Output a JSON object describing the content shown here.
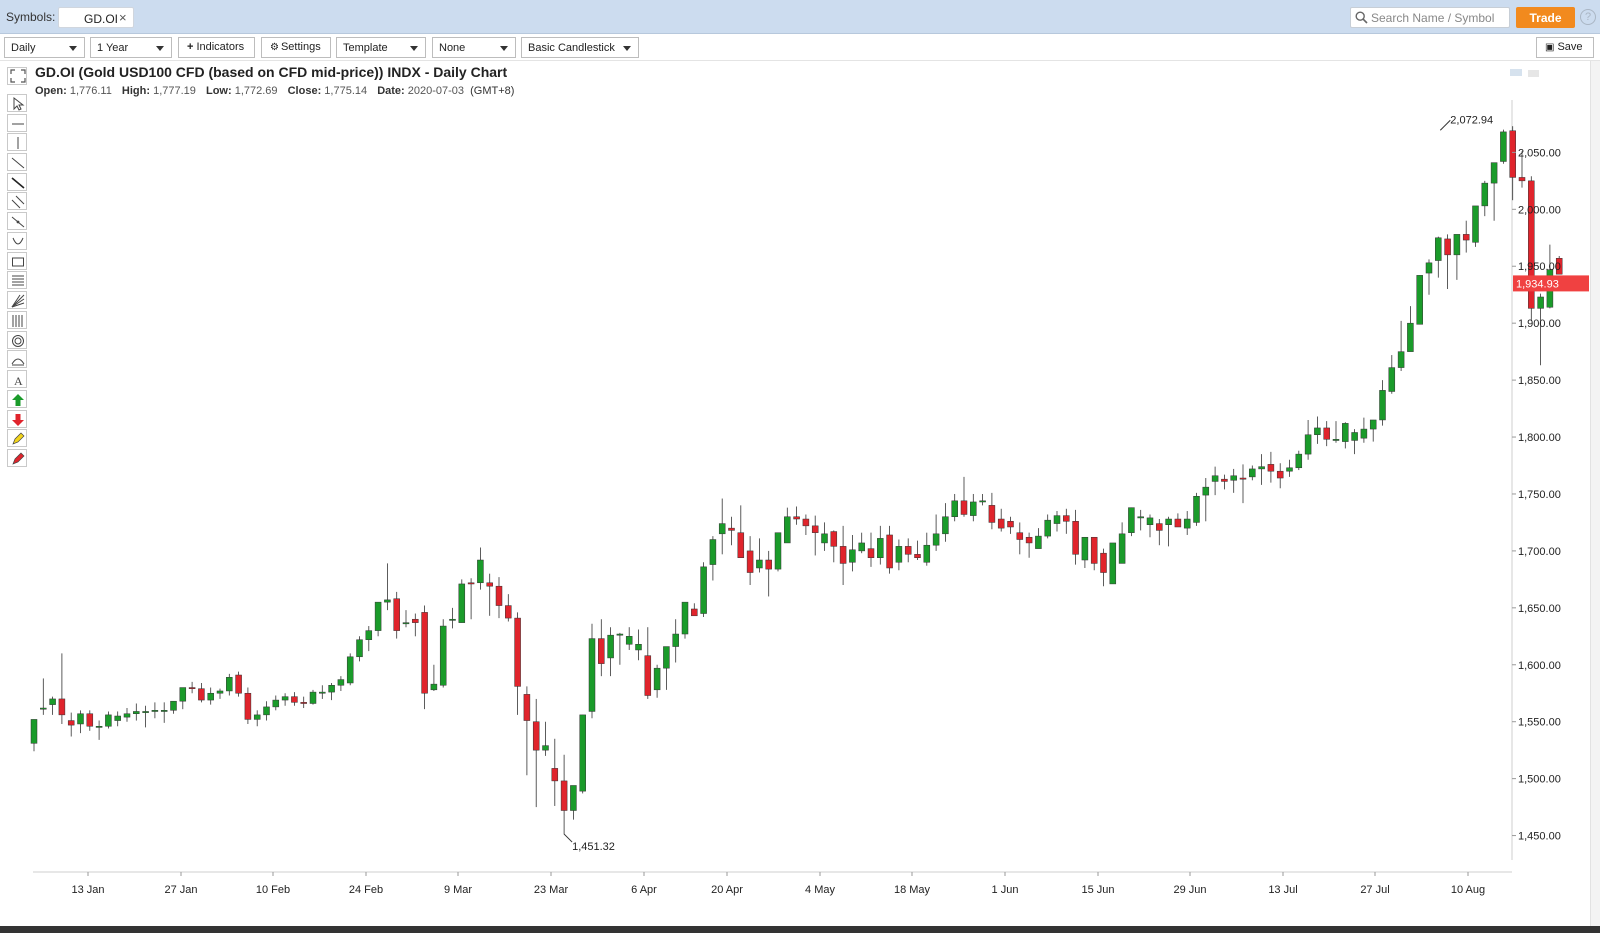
{
  "symbols_bar": {
    "label": "Symbols:",
    "symbol_chip": "GD.OI",
    "close_glyph": "×",
    "search_placeholder": "Search Name / Symbol",
    "trade_label": "Trade",
    "help_glyph": "?"
  },
  "toolbar": {
    "interval": "Daily",
    "range": "1 Year",
    "indicators_label": "Indicators",
    "settings_label": "Settings",
    "template_label": "Template",
    "compare_label": "None",
    "chart_type": "Basic Candlestick",
    "save_label": "Save"
  },
  "chart_header": {
    "title": "GD.OI (Gold USD100 CFD (based on CFD mid-price)) INDX - Daily Chart",
    "open_label": "Open:",
    "open": "1,776.11",
    "high_label": "High:",
    "high": "1,777.19",
    "low_label": "Low:",
    "low": "1,772.69",
    "close_label": "Close:",
    "close": "1,775.14",
    "date_label": "Date:",
    "date": "2020-07-03",
    "tz": "(GMT+8)"
  },
  "tools": [
    "select-icon",
    "horizontal-line-icon",
    "vertical-line-icon",
    "trend-line-icon",
    "ray-icon",
    "parallel-channel-icon",
    "extended-line-icon",
    "arc-icon",
    "rectangle-icon",
    "fibonacci-retracement-icon",
    "fan-icon",
    "time-zones-icon",
    "circle-icon",
    "pitchfork-icon",
    "text-icon",
    "arrow-up-icon",
    "arrow-down-icon",
    "pencil-icon",
    "eraser-icon"
  ],
  "colors": {
    "up": "#1a9b2a",
    "down": "#e0242c",
    "last_price_bg": "#f04141",
    "accent": "#f28a1e"
  },
  "chart_data": {
    "type": "candlestick",
    "x_tick_labels": [
      "13 Jan",
      "27 Jan",
      "10 Feb",
      "24 Feb",
      "9 Mar",
      "23 Mar",
      "6 Apr",
      "20 Apr",
      "4 May",
      "18 May",
      "1 Jun",
      "15 Jun",
      "29 Jun",
      "13 Jul",
      "27 Jul",
      "10 Aug"
    ],
    "y_tick_labels": [
      "2,050.00",
      "2,000.00",
      "1,950.00",
      "1,900.00",
      "1,850.00",
      "1,800.00",
      "1,750.00",
      "1,700.00",
      "1,650.00",
      "1,600.00",
      "1,550.00",
      "1,500.00",
      "1,450.00"
    ],
    "y_ticks": [
      2050,
      2000,
      1950,
      1900,
      1850,
      1800,
      1750,
      1700,
      1650,
      1600,
      1550,
      1500,
      1450
    ],
    "ylim": [
      1418,
      2096
    ],
    "annotations": {
      "high_label": "2,072.94",
      "high_value": 2072.94,
      "low_label": "1,451.32",
      "low_value": 1451.32
    },
    "last_price": "1,934.93",
    "last_price_value": 1934.93,
    "candles_ohlc": [
      [
        1531,
        1552,
        1524,
        1552
      ],
      [
        1562,
        1588,
        1556,
        1562
      ],
      [
        1565,
        1572,
        1556,
        1570
      ],
      [
        1570,
        1610,
        1548,
        1556
      ],
      [
        1551,
        1558,
        1537,
        1547
      ],
      [
        1548,
        1560,
        1540,
        1557
      ],
      [
        1557,
        1560,
        1542,
        1546
      ],
      [
        1546,
        1551,
        1534,
        1546
      ],
      [
        1546,
        1559,
        1544,
        1556
      ],
      [
        1551,
        1559,
        1546,
        1555
      ],
      [
        1554,
        1562,
        1550,
        1557
      ],
      [
        1557,
        1566,
        1551,
        1559
      ],
      [
        1558,
        1564,
        1545,
        1559
      ],
      [
        1559,
        1567,
        1553,
        1560
      ],
      [
        1560,
        1567,
        1549,
        1560
      ],
      [
        1560,
        1568,
        1557,
        1568
      ],
      [
        1568,
        1577,
        1561,
        1580
      ],
      [
        1580,
        1585,
        1575,
        1579
      ],
      [
        1579,
        1584,
        1567,
        1569
      ],
      [
        1569,
        1580,
        1565,
        1575
      ],
      [
        1575,
        1579,
        1570,
        1577
      ],
      [
        1577,
        1592,
        1573,
        1589
      ],
      [
        1591,
        1594,
        1572,
        1575
      ],
      [
        1575,
        1580,
        1548,
        1552
      ],
      [
        1552,
        1560,
        1546,
        1556
      ],
      [
        1556,
        1568,
        1551,
        1563
      ],
      [
        1563,
        1573,
        1560,
        1569
      ],
      [
        1569,
        1575,
        1564,
        1572
      ],
      [
        1572,
        1576,
        1564,
        1567
      ],
      [
        1567,
        1572,
        1562,
        1566
      ],
      [
        1566,
        1578,
        1565,
        1576
      ],
      [
        1576,
        1582,
        1570,
        1576
      ],
      [
        1576,
        1584,
        1569,
        1582
      ],
      [
        1582,
        1590,
        1577,
        1587
      ],
      [
        1584,
        1610,
        1582,
        1607
      ],
      [
        1607,
        1625,
        1603,
        1622
      ],
      [
        1622,
        1634,
        1612,
        1630
      ],
      [
        1630,
        1655,
        1625,
        1655
      ],
      [
        1655,
        1689,
        1648,
        1657
      ],
      [
        1658,
        1664,
        1623,
        1630
      ],
      [
        1636,
        1648,
        1633,
        1637
      ],
      [
        1640,
        1645,
        1625,
        1637
      ],
      [
        1646,
        1652,
        1561,
        1575
      ],
      [
        1578,
        1600,
        1577,
        1583
      ],
      [
        1582,
        1640,
        1580,
        1634
      ],
      [
        1640,
        1650,
        1632,
        1640
      ],
      [
        1637,
        1675,
        1637,
        1671
      ],
      [
        1672,
        1676,
        1640,
        1671
      ],
      [
        1672,
        1703,
        1666,
        1692
      ],
      [
        1672,
        1680,
        1643,
        1669
      ],
      [
        1669,
        1677,
        1641,
        1652
      ],
      [
        1652,
        1662,
        1638,
        1641
      ],
      [
        1641,
        1646,
        1556,
        1581
      ],
      [
        1574,
        1581,
        1503,
        1551
      ],
      [
        1550,
        1570,
        1475,
        1525
      ],
      [
        1525,
        1550,
        1520,
        1529
      ],
      [
        1509,
        1535,
        1476,
        1498
      ],
      [
        1498,
        1521,
        1451,
        1472
      ],
      [
        1472,
        1494,
        1464,
        1494
      ],
      [
        1489,
        1556,
        1487,
        1556
      ],
      [
        1559,
        1636,
        1553,
        1623
      ],
      [
        1623,
        1640,
        1590,
        1601
      ],
      [
        1606,
        1633,
        1590,
        1626
      ],
      [
        1626,
        1628,
        1600,
        1627
      ],
      [
        1618,
        1633,
        1613,
        1625
      ],
      [
        1613,
        1631,
        1604,
        1618
      ],
      [
        1608,
        1633,
        1570,
        1573
      ],
      [
        1578,
        1600,
        1571,
        1597
      ],
      [
        1597,
        1608,
        1578,
        1616
      ],
      [
        1616,
        1640,
        1602,
        1627
      ],
      [
        1627,
        1652,
        1623,
        1655
      ],
      [
        1649,
        1654,
        1644,
        1643
      ],
      [
        1645,
        1690,
        1642,
        1686
      ],
      [
        1688,
        1713,
        1674,
        1710
      ],
      [
        1715,
        1746,
        1697,
        1724
      ],
      [
        1720,
        1730,
        1705,
        1718
      ],
      [
        1716,
        1740,
        1694,
        1694
      ],
      [
        1700,
        1713,
        1670,
        1681
      ],
      [
        1685,
        1711,
        1681,
        1692
      ],
      [
        1692,
        1700,
        1660,
        1684
      ],
      [
        1684,
        1715,
        1682,
        1716
      ],
      [
        1707,
        1738,
        1708,
        1730
      ],
      [
        1730,
        1739,
        1723,
        1728
      ],
      [
        1728,
        1732,
        1714,
        1722
      ],
      [
        1722,
        1731,
        1696,
        1716
      ],
      [
        1707,
        1725,
        1700,
        1715
      ],
      [
        1717,
        1718,
        1690,
        1704
      ],
      [
        1704,
        1722,
        1670,
        1689
      ],
      [
        1690,
        1714,
        1682,
        1701
      ],
      [
        1700,
        1716,
        1698,
        1707
      ],
      [
        1702,
        1716,
        1686,
        1694
      ],
      [
        1694,
        1722,
        1688,
        1711
      ],
      [
        1714,
        1722,
        1680,
        1685
      ],
      [
        1690,
        1710,
        1683,
        1704
      ],
      [
        1704,
        1711,
        1690,
        1697
      ],
      [
        1697,
        1709,
        1692,
        1694
      ],
      [
        1690,
        1716,
        1687,
        1705
      ],
      [
        1705,
        1732,
        1700,
        1715
      ],
      [
        1715,
        1742,
        1708,
        1730
      ],
      [
        1730,
        1750,
        1726,
        1744
      ],
      [
        1744,
        1765,
        1730,
        1732
      ],
      [
        1731,
        1750,
        1726,
        1743
      ],
      [
        1743,
        1750,
        1740,
        1744
      ],
      [
        1740,
        1751,
        1719,
        1725
      ],
      [
        1728,
        1737,
        1717,
        1720
      ],
      [
        1726,
        1730,
        1715,
        1721
      ],
      [
        1716,
        1725,
        1697,
        1710
      ],
      [
        1712,
        1716,
        1694,
        1707
      ],
      [
        1702,
        1720,
        1707,
        1713
      ],
      [
        1713,
        1732,
        1711,
        1727
      ],
      [
        1724,
        1735,
        1717,
        1731
      ],
      [
        1731,
        1737,
        1715,
        1726
      ],
      [
        1726,
        1736,
        1688,
        1697
      ],
      [
        1692,
        1712,
        1685,
        1712
      ],
      [
        1712,
        1710,
        1683,
        1689
      ],
      [
        1698,
        1702,
        1669,
        1681
      ],
      [
        1671,
        1702,
        1671,
        1707
      ],
      [
        1689,
        1725,
        1695,
        1715
      ],
      [
        1716,
        1738,
        1713,
        1738
      ],
      [
        1730,
        1736,
        1718,
        1730
      ],
      [
        1723,
        1732,
        1712,
        1729
      ],
      [
        1724,
        1728,
        1705,
        1718
      ],
      [
        1723,
        1730,
        1704,
        1728
      ],
      [
        1728,
        1733,
        1721,
        1721
      ],
      [
        1720,
        1735,
        1714,
        1728
      ],
      [
        1725,
        1751,
        1722,
        1748
      ],
      [
        1749,
        1764,
        1726,
        1756
      ],
      [
        1761,
        1774,
        1749,
        1766
      ],
      [
        1763,
        1767,
        1754,
        1761
      ],
      [
        1762,
        1772,
        1751,
        1766
      ],
      [
        1764,
        1776,
        1742,
        1763
      ],
      [
        1765,
        1775,
        1762,
        1772
      ],
      [
        1772,
        1785,
        1758,
        1774
      ],
      [
        1776,
        1787,
        1760,
        1770
      ],
      [
        1770,
        1777,
        1755,
        1764
      ],
      [
        1770,
        1780,
        1765,
        1773
      ],
      [
        1773,
        1788,
        1771,
        1785
      ],
      [
        1785,
        1815,
        1780,
        1802
      ],
      [
        1802,
        1818,
        1794,
        1808
      ],
      [
        1808,
        1814,
        1792,
        1798
      ],
      [
        1798,
        1814,
        1795,
        1798
      ],
      [
        1796,
        1813,
        1790,
        1812
      ],
      [
        1797,
        1807,
        1785,
        1804
      ],
      [
        1799,
        1817,
        1795,
        1807
      ],
      [
        1807,
        1815,
        1796,
        1815
      ],
      [
        1815,
        1850,
        1810,
        1841
      ],
      [
        1840,
        1872,
        1838,
        1861
      ],
      [
        1861,
        1902,
        1858,
        1875
      ],
      [
        1875,
        1915,
        1882,
        1900
      ],
      [
        1899,
        1942,
        1899,
        1942
      ],
      [
        1944,
        1956,
        1925,
        1953
      ],
      [
        1955,
        1976,
        1940,
        1975
      ],
      [
        1974,
        1978,
        1930,
        1960
      ],
      [
        1960,
        1975,
        1938,
        1978
      ],
      [
        1978,
        1990,
        1962,
        1973
      ],
      [
        1971,
        2002,
        1967,
        2003
      ],
      [
        2003,
        2025,
        1994,
        2023
      ],
      [
        2023,
        2030,
        1990,
        2041
      ],
      [
        2042,
        2070,
        2040,
        2068
      ],
      [
        2069,
        2073,
        2008,
        2028
      ],
      [
        2028,
        2051,
        2019,
        2025
      ],
      [
        2025,
        2029,
        1902,
        1913
      ],
      [
        1913,
        1926,
        1863,
        1923
      ],
      [
        1914,
        1969,
        1913,
        1947
      ],
      [
        1957,
        1959,
        1944,
        1943
      ]
    ]
  }
}
